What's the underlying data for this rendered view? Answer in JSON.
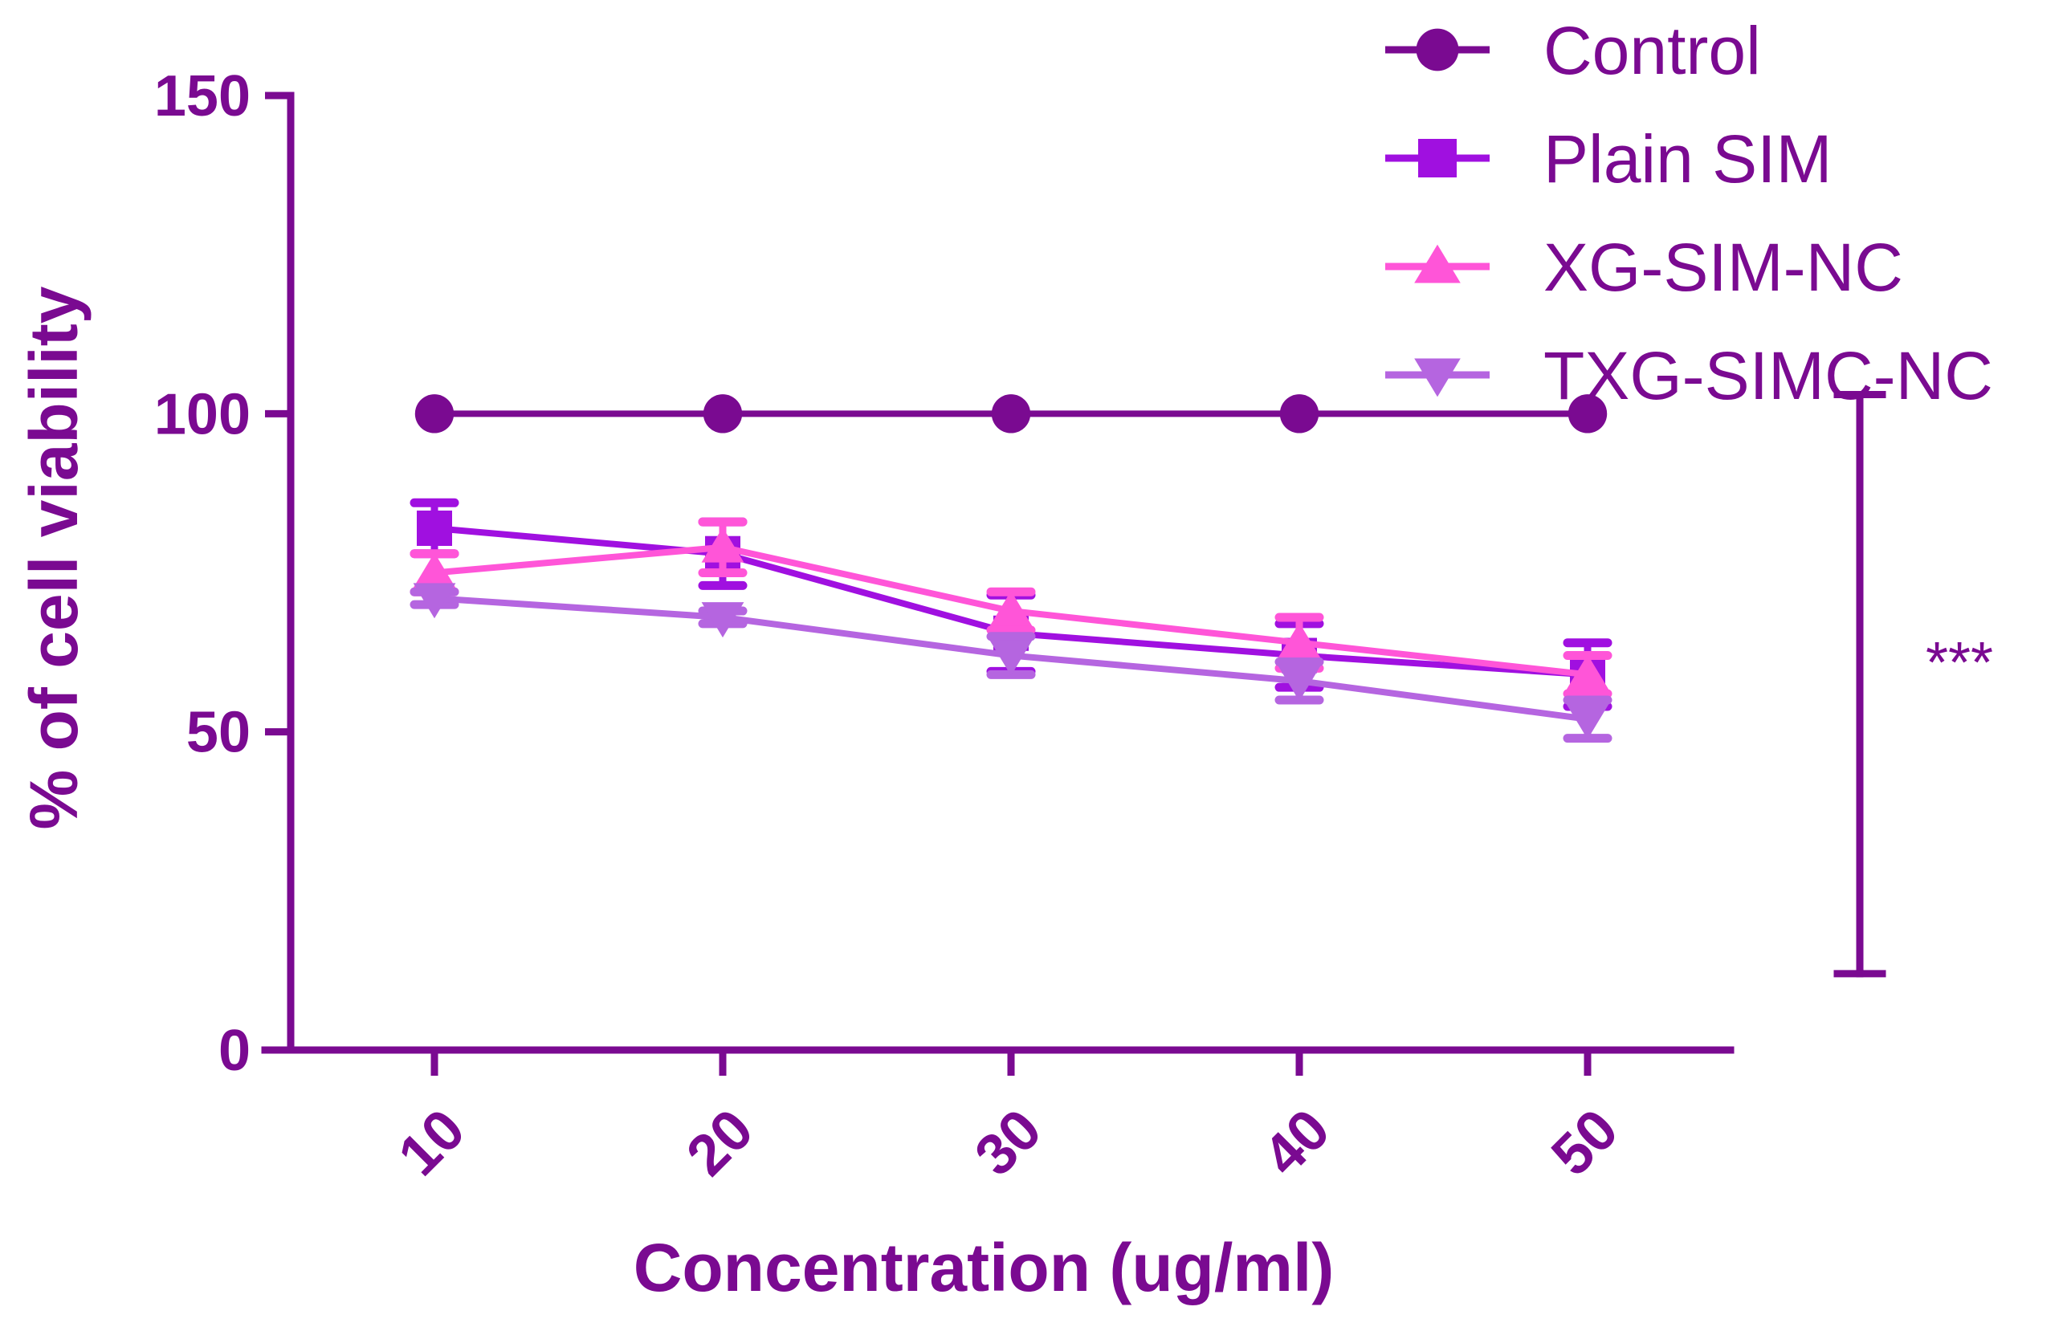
{
  "chart_data": {
    "type": "line",
    "title": "",
    "xlabel": "Concentration (ug/ml)",
    "ylabel": "% of cell viability",
    "categories": [
      "10",
      "20",
      "30",
      "40",
      "50"
    ],
    "ylim": [
      0,
      150
    ],
    "yticks": [
      "0",
      "50",
      "100",
      "150"
    ],
    "legend_position": "top-right",
    "series": [
      {
        "name": "Control",
        "marker": "circle",
        "color": "#7a0a91",
        "values": [
          100,
          100,
          100,
          100,
          100
        ],
        "errors": [
          0,
          0,
          0,
          0,
          0
        ]
      },
      {
        "name": "Plain SIM",
        "marker": "square",
        "color": "#a010e0",
        "values": [
          82,
          78,
          65.5,
          62,
          59
        ],
        "errors": [
          4,
          5,
          6,
          5,
          5
        ]
      },
      {
        "name": "XG-SIM-NC",
        "marker": "triangle-up",
        "color": "#ff55d8",
        "values": [
          75,
          79,
          69,
          64,
          59
        ],
        "errors": [
          3,
          4,
          3,
          4,
          3
        ]
      },
      {
        "name": "TXG-SIMC-NC",
        "marker": "triangle-down",
        "color": "#b565e0",
        "values": [
          71,
          68,
          62,
          58,
          52
        ],
        "errors": [
          1,
          1,
          3,
          3,
          3
        ]
      }
    ],
    "significance": {
      "label": "***",
      "y_top": 103,
      "y_bottom": 12
    }
  }
}
